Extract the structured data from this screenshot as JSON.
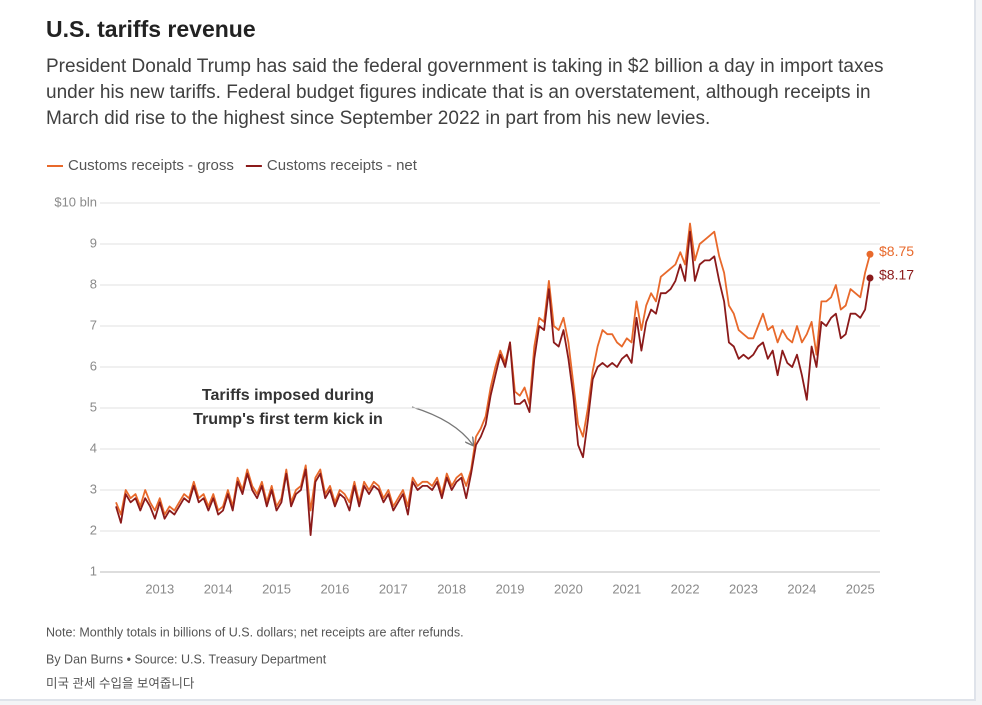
{
  "chart_data": {
    "type": "line",
    "title": "U.S. tariffs revenue",
    "subtitle": "President Donald Trump has said the federal government is taking in $2 billion a day in import taxes under his new tariffs. Federal budget figures indicate that is an overstatement, although receipts in March did rise to the highest since September 2022 in part from his new levies.",
    "annotation": [
      "Tariffs imposed during",
      "Trump's first term kick in"
    ],
    "note": "Note: Monthly totals in billions of U.S. dollars; net receipts are after refunds.",
    "source": "By Dan Burns • Source: U.S. Treasury Department",
    "caption": "미국 관세 수입을 보여줍니다",
    "grid": true,
    "legend": "top",
    "ylim": [
      1,
      10
    ],
    "yticks": [
      1,
      2,
      3,
      4,
      5,
      6,
      7,
      8,
      9,
      {
        "value": 10,
        "label": "$10 bln"
      }
    ],
    "categories": [
      null,
      null,
      null,
      null,
      null,
      null,
      null,
      null,
      null,
      "2013",
      null,
      null,
      null,
      null,
      null,
      null,
      null,
      null,
      null,
      null,
      null,
      "2014",
      null,
      null,
      null,
      null,
      null,
      null,
      null,
      null,
      null,
      null,
      null,
      "2015",
      null,
      null,
      null,
      null,
      null,
      null,
      null,
      null,
      null,
      null,
      null,
      "2016",
      null,
      null,
      null,
      null,
      null,
      null,
      null,
      null,
      null,
      null,
      null,
      "2017",
      null,
      null,
      null,
      null,
      null,
      null,
      null,
      null,
      null,
      null,
      null,
      "2018",
      null,
      null,
      null,
      null,
      null,
      null,
      null,
      null,
      null,
      null,
      null,
      "2019",
      null,
      null,
      null,
      null,
      null,
      null,
      null,
      null,
      null,
      null,
      null,
      "2020",
      null,
      null,
      null,
      null,
      null,
      null,
      null,
      null,
      null,
      null,
      null,
      "2021",
      null,
      null,
      null,
      null,
      null,
      null,
      null,
      null,
      null,
      null,
      null,
      "2022",
      null,
      null,
      null,
      null,
      null,
      null,
      null,
      null,
      null,
      null,
      null,
      "2023",
      null,
      null,
      null,
      null,
      null,
      null,
      null,
      null,
      null,
      null,
      null,
      "2024",
      null,
      null,
      null,
      null,
      null,
      null,
      null,
      null,
      null,
      null,
      null,
      "2025",
      null,
      null
    ],
    "series": [
      {
        "name": "Customs receipts - gross",
        "color": "#e8692b",
        "values": [
          2.7,
          2.4,
          3.0,
          2.8,
          2.9,
          2.6,
          3.0,
          2.7,
          2.5,
          2.8,
          2.4,
          2.6,
          2.5,
          2.7,
          2.9,
          2.8,
          3.2,
          2.8,
          2.9,
          2.6,
          2.9,
          2.5,
          2.6,
          3.0,
          2.6,
          3.3,
          3.0,
          3.5,
          3.1,
          2.9,
          3.2,
          2.7,
          3.1,
          2.6,
          2.8,
          3.5,
          2.7,
          3.0,
          3.1,
          3.6,
          2.5,
          3.3,
          3.5,
          2.9,
          3.1,
          2.7,
          3.0,
          2.9,
          2.7,
          3.2,
          2.7,
          3.2,
          3.0,
          3.2,
          3.1,
          2.8,
          3.0,
          2.6,
          2.8,
          3.0,
          2.6,
          3.3,
          3.1,
          3.2,
          3.2,
          3.1,
          3.3,
          2.9,
          3.4,
          3.1,
          3.3,
          3.4,
          3.1,
          3.5,
          4.3,
          4.5,
          4.8,
          5.5,
          6.0,
          6.4,
          6.1,
          6.6,
          5.4,
          5.3,
          5.5,
          5.1,
          6.5,
          7.2,
          7.1,
          8.1,
          7.0,
          6.9,
          7.2,
          6.6,
          5.6,
          4.6,
          4.3,
          5.0,
          5.9,
          6.5,
          6.9,
          6.8,
          6.8,
          6.6,
          6.5,
          6.7,
          6.6,
          7.6,
          6.9,
          7.5,
          7.8,
          7.6,
          8.2,
          8.3,
          8.4,
          8.5,
          8.8,
          8.5,
          9.5,
          8.6,
          9.0,
          9.1,
          9.2,
          9.3,
          8.7,
          8.3,
          7.5,
          7.3,
          6.9,
          6.8,
          6.7,
          6.7,
          7.0,
          7.3,
          6.9,
          7.0,
          6.6,
          6.9,
          6.7,
          6.6,
          7.0,
          6.6,
          6.8,
          7.1,
          6.3,
          7.6,
          7.6,
          7.7,
          8.0,
          7.4,
          7.5,
          7.9,
          7.8,
          7.7,
          8.3,
          8.75
        ],
        "value_labels": [
          null,
          null,
          null,
          null,
          null,
          null,
          null,
          null,
          null,
          null,
          null,
          null,
          null,
          null,
          null,
          null,
          null,
          null,
          null,
          null,
          null,
          null,
          null,
          null,
          null,
          null,
          null,
          null,
          null,
          null,
          null,
          null,
          null,
          null,
          null,
          null,
          null,
          null,
          null,
          null,
          null,
          null,
          null,
          null,
          null,
          null,
          null,
          null,
          null,
          null,
          null,
          null,
          null,
          null,
          null,
          null,
          null,
          null,
          null,
          null,
          null,
          null,
          null,
          null,
          null,
          null,
          null,
          null,
          null,
          null,
          null,
          null,
          null,
          null,
          null,
          null,
          null,
          null,
          null,
          null,
          null,
          null,
          null,
          null,
          null,
          null,
          null,
          null,
          null,
          null,
          null,
          null,
          null,
          null,
          null,
          null,
          null,
          null,
          null,
          null,
          null,
          null,
          null,
          null,
          null,
          null,
          null,
          null,
          null,
          null,
          null,
          null,
          null,
          null,
          null,
          null,
          null,
          null,
          null,
          null,
          null,
          null,
          null,
          null,
          null,
          null,
          null,
          null,
          null,
          null,
          null,
          null,
          null,
          null,
          null,
          null,
          null,
          null,
          null,
          null,
          null,
          null,
          null,
          null,
          null,
          null,
          null,
          null,
          null,
          null,
          null,
          null,
          null,
          null,
          null,
          "$8.75"
        ]
      },
      {
        "name": "Customs receipts - net",
        "color": "#8b1a1a",
        "values": [
          2.6,
          2.2,
          2.9,
          2.7,
          2.8,
          2.5,
          2.8,
          2.6,
          2.3,
          2.7,
          2.3,
          2.5,
          2.4,
          2.6,
          2.8,
          2.7,
          3.1,
          2.7,
          2.8,
          2.5,
          2.8,
          2.4,
          2.5,
          2.9,
          2.5,
          3.2,
          2.9,
          3.4,
          3.0,
          2.8,
          3.1,
          2.6,
          3.0,
          2.5,
          2.7,
          3.4,
          2.6,
          2.9,
          3.0,
          3.5,
          1.9,
          3.2,
          3.4,
          2.8,
          3.0,
          2.6,
          2.9,
          2.8,
          2.5,
          3.1,
          2.6,
          3.1,
          2.9,
          3.1,
          3.0,
          2.7,
          2.9,
          2.5,
          2.7,
          2.9,
          2.4,
          3.2,
          3.0,
          3.1,
          3.1,
          3.0,
          3.2,
          2.8,
          3.3,
          3.0,
          3.2,
          3.3,
          2.8,
          3.4,
          4.1,
          4.3,
          4.6,
          5.3,
          5.8,
          6.3,
          6.0,
          6.6,
          5.1,
          5.1,
          5.2,
          4.9,
          6.2,
          7.0,
          6.9,
          7.9,
          6.6,
          6.5,
          6.9,
          6.2,
          5.3,
          4.1,
          3.8,
          4.7,
          5.7,
          6.0,
          6.1,
          6.0,
          6.1,
          6.0,
          6.2,
          6.3,
          6.1,
          7.2,
          6.4,
          7.1,
          7.4,
          7.3,
          7.8,
          7.8,
          7.9,
          8.1,
          8.5,
          8.1,
          9.3,
          8.1,
          8.5,
          8.6,
          8.6,
          8.7,
          8.1,
          7.6,
          6.6,
          6.5,
          6.2,
          6.3,
          6.2,
          6.3,
          6.5,
          6.6,
          6.2,
          6.4,
          5.8,
          6.4,
          6.1,
          6.0,
          6.3,
          5.8,
          5.2,
          6.5,
          6.0,
          7.1,
          7.0,
          7.2,
          7.3,
          6.7,
          6.8,
          7.3,
          7.3,
          7.2,
          7.4,
          8.17
        ],
        "value_labels": [
          null,
          null,
          null,
          null,
          null,
          null,
          null,
          null,
          null,
          null,
          null,
          null,
          null,
          null,
          null,
          null,
          null,
          null,
          null,
          null,
          null,
          null,
          null,
          null,
          null,
          null,
          null,
          null,
          null,
          null,
          null,
          null,
          null,
          null,
          null,
          null,
          null,
          null,
          null,
          null,
          null,
          null,
          null,
          null,
          null,
          null,
          null,
          null,
          null,
          null,
          null,
          null,
          null,
          null,
          null,
          null,
          null,
          null,
          null,
          null,
          null,
          null,
          null,
          null,
          null,
          null,
          null,
          null,
          null,
          null,
          null,
          null,
          null,
          null,
          null,
          null,
          null,
          null,
          null,
          null,
          null,
          null,
          null,
          null,
          null,
          null,
          null,
          null,
          null,
          null,
          null,
          null,
          null,
          null,
          null,
          null,
          null,
          null,
          null,
          null,
          null,
          null,
          null,
          null,
          null,
          null,
          null,
          null,
          null,
          null,
          null,
          null,
          null,
          null,
          null,
          null,
          null,
          null,
          null,
          null,
          null,
          null,
          null,
          null,
          null,
          null,
          null,
          null,
          null,
          null,
          null,
          null,
          null,
          null,
          null,
          null,
          null,
          null,
          null,
          null,
          null,
          null,
          null,
          null,
          null,
          null,
          null,
          null,
          null,
          null,
          null,
          null,
          null,
          null,
          null,
          "$8.17"
        ]
      }
    ]
  }
}
